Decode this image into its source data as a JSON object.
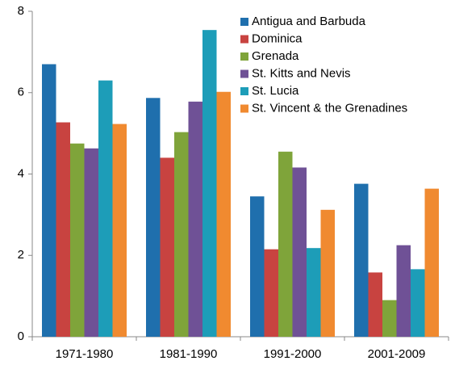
{
  "chart_data": {
    "type": "bar",
    "categories": [
      "1971-1980",
      "1981-1990",
      "1991-2000",
      "2001-2009"
    ],
    "series": [
      {
        "name": "Antigua and Barbuda",
        "color": "#1f6fad",
        "values": [
          6.7,
          5.87,
          3.45,
          3.76
        ]
      },
      {
        "name": "Dominica",
        "color": "#c84340",
        "values": [
          5.27,
          4.4,
          2.15,
          1.58
        ]
      },
      {
        "name": "Grenada",
        "color": "#7fa43a",
        "values": [
          4.75,
          5.03,
          4.55,
          0.9
        ]
      },
      {
        "name": "St. Kitts and Nevis",
        "color": "#6f5196",
        "values": [
          4.63,
          5.78,
          4.16,
          2.25
        ]
      },
      {
        "name": "St. Lucia",
        "color": "#1d9db8",
        "values": [
          6.3,
          7.54,
          2.18,
          1.66
        ]
      },
      {
        "name": "St. Vincent & the Grenadines",
        "color": "#f08a30",
        "values": [
          5.23,
          6.02,
          3.12,
          3.64
        ]
      }
    ],
    "ylim": [
      0,
      8
    ],
    "yticks": [
      0,
      2,
      4,
      6,
      8
    ],
    "grid": false,
    "legend": "top-right"
  }
}
